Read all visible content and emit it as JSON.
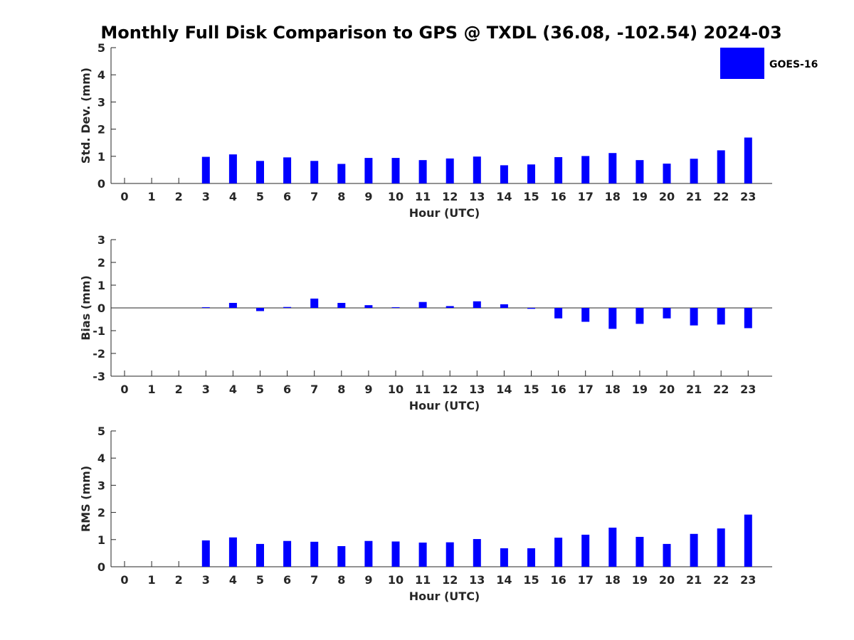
{
  "chart_data": {
    "type": "bar",
    "title": "Monthly Full Disk Comparison to GPS @ TXDL (36.08, -102.54) 2024-03",
    "legend": {
      "label": "GOES-16",
      "color": "#0000ff",
      "placement": "top-right"
    },
    "categories": [
      "0",
      "1",
      "2",
      "3",
      "4",
      "5",
      "6",
      "7",
      "8",
      "9",
      "10",
      "11",
      "12",
      "13",
      "14",
      "15",
      "16",
      "17",
      "18",
      "19",
      "20",
      "21",
      "22",
      "23"
    ],
    "panels": [
      {
        "key": "std",
        "ylabel": "Std. Dev. (mm)",
        "xlabel": "Hour (UTC)",
        "ylim": [
          0,
          5
        ],
        "yticks": [
          "0",
          "1",
          "2",
          "3",
          "4",
          "5"
        ],
        "series": [
          {
            "name": "GOES-16",
            "values": [
              null,
              null,
              null,
              0.98,
              1.07,
              0.83,
              0.96,
              0.83,
              0.72,
              0.94,
              0.94,
              0.86,
              0.92,
              0.99,
              0.67,
              0.7,
              0.97,
              1.01,
              1.12,
              0.86,
              0.73,
              0.91,
              1.22,
              1.69
            ]
          }
        ]
      },
      {
        "key": "bias",
        "ylabel": "Bias (mm)",
        "xlabel": "Hour (UTC)",
        "ylim": [
          -3,
          3
        ],
        "yticks": [
          "-3",
          "-2",
          "-1",
          "0",
          "1",
          "2",
          "3"
        ],
        "series": [
          {
            "name": "GOES-16",
            "values": [
              null,
              null,
              null,
              0.03,
              0.22,
              -0.14,
              0.04,
              0.41,
              0.22,
              0.12,
              0.03,
              0.26,
              0.08,
              0.29,
              0.16,
              -0.04,
              -0.46,
              -0.61,
              -0.92,
              -0.7,
              -0.46,
              -0.77,
              -0.73,
              -0.89
            ]
          }
        ]
      },
      {
        "key": "rms",
        "ylabel": "RMS (mm)",
        "xlabel": "Hour (UTC)",
        "ylim": [
          0,
          5
        ],
        "yticks": [
          "0",
          "1",
          "2",
          "3",
          "4",
          "5"
        ],
        "series": [
          {
            "name": "GOES-16",
            "values": [
              null,
              null,
              null,
              0.97,
              1.08,
              0.84,
              0.95,
              0.92,
              0.76,
              0.95,
              0.93,
              0.89,
              0.9,
              1.02,
              0.68,
              0.68,
              1.07,
              1.18,
              1.44,
              1.1,
              0.84,
              1.21,
              1.41,
              1.92
            ]
          }
        ]
      }
    ]
  }
}
